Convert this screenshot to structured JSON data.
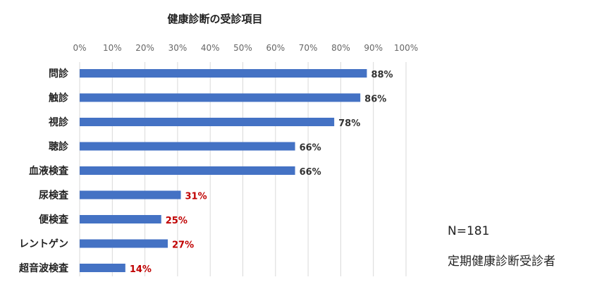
{
  "chart_data": {
    "type": "bar",
    "orientation": "horizontal",
    "title": "健康診断の受診項目",
    "categories": [
      "問診",
      "触診",
      "視診",
      "聴診",
      "血液検査",
      "尿検査",
      "便検査",
      "レントゲン",
      "超音波検査"
    ],
    "values": [
      88,
      86,
      78,
      66,
      66,
      31,
      25,
      27,
      14
    ],
    "value_labels": [
      "88%",
      "86%",
      "78%",
      "66%",
      "66%",
      "31%",
      "25%",
      "27%",
      "14%"
    ],
    "highlight": [
      false,
      false,
      false,
      false,
      false,
      true,
      true,
      true,
      true
    ],
    "xlim": [
      0,
      100
    ],
    "xticks": [
      "0%",
      "10%",
      "20%",
      "30%",
      "40%",
      "50%",
      "60%",
      "70%",
      "80%",
      "90%",
      "100%"
    ],
    "grid": true,
    "colors": {
      "bar": "#4472C4",
      "label": "#333333",
      "highlight_label": "#C00000",
      "grid": "#D9D9D9"
    }
  },
  "notes": {
    "sample": "N=181",
    "description": "定期健康診断受診者"
  }
}
